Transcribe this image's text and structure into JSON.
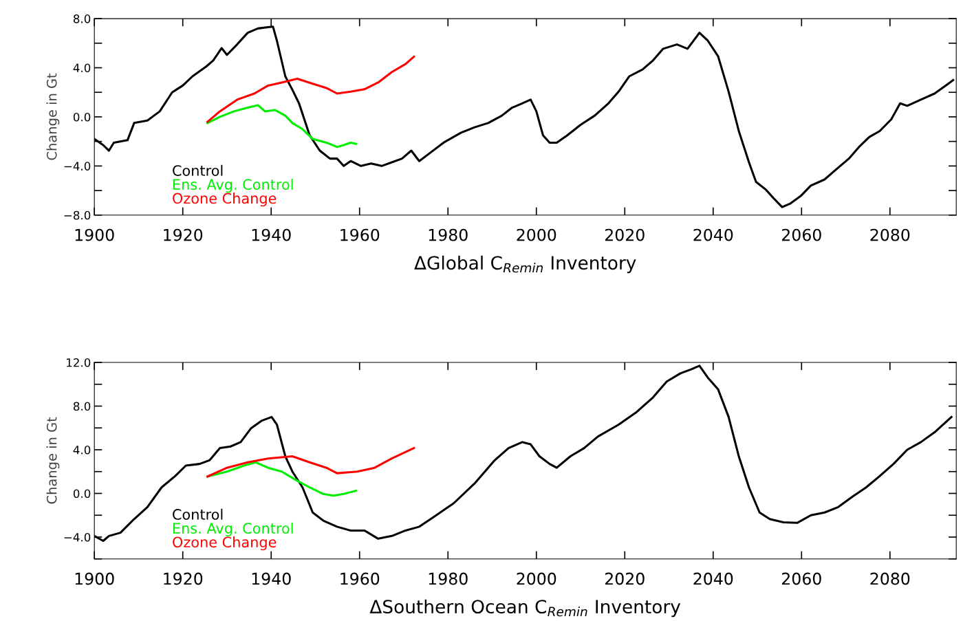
{
  "chart_data": [
    {
      "type": "line",
      "xlabel": "ΔGlobal C$_{Remin}$ Inventory",
      "ylabel": "Change in Gt",
      "xlim": [
        1900,
        2095
      ],
      "xticks": [
        1900,
        1920,
        1940,
        1960,
        1980,
        2000,
        2020,
        2040,
        2060,
        2080
      ],
      "ylim": [
        -8,
        8
      ],
      "yticks": [
        {
          "value": -8,
          "label": "−8.0"
        },
        {
          "value": -6,
          "label": null
        },
        {
          "value": -4,
          "label": "−4.0"
        },
        {
          "value": -2,
          "label": null
        },
        {
          "value": 0,
          "label": "0.0"
        },
        {
          "value": 2,
          "label": null
        },
        {
          "value": 4,
          "label": "4.0"
        },
        {
          "value": 6,
          "label": null
        },
        {
          "value": 8,
          "label": "8.0"
        }
      ],
      "legend": "bottom left",
      "grid": false,
      "series": [
        {
          "name": "Control",
          "color": "#000000",
          "x": [
            1900,
            1902,
            1903.3,
            1904.4,
            1907.5,
            1909,
            1912,
            1914.8,
            1917.6,
            1920,
            1922.2,
            1925.3,
            1926.9,
            1928.8,
            1930,
            1932.3,
            1934.7,
            1937,
            1939.3,
            1940.4,
            1941.3,
            1943.2,
            1944.8,
            1946.3,
            1948.7,
            1951,
            1953.3,
            1954.9,
            1956.4,
            1958,
            1960.3,
            1962.6,
            1965,
            1967.3,
            1969.6,
            1971.7,
            1973.5,
            1975.9,
            1979,
            1982.9,
            1986,
            1989.1,
            1992.2,
            1994.5,
            1996.8,
            1998.7,
            2000,
            2001.5,
            2003,
            2004.6,
            2007,
            2010,
            2013.2,
            2016.3,
            2018.6,
            2021,
            2024,
            2026.4,
            2028.7,
            2031.8,
            2034.2,
            2036.9,
            2038.8,
            2041.1,
            2043.5,
            2045.8,
            2048.1,
            2049.7,
            2052,
            2053.6,
            2055.6,
            2057.5,
            2059.8,
            2062.1,
            2065.2,
            2067.6,
            2070.7,
            2073,
            2075.3,
            2077.7,
            2080.3,
            2082.3,
            2083.9,
            2087,
            2090.1,
            2093.2,
            2094.3
          ],
          "values": [
            -1.8,
            -2.3,
            -2.75,
            -2.1,
            -1.9,
            -0.5,
            -0.3,
            0.45,
            2.0,
            2.55,
            3.3,
            4.1,
            4.6,
            5.6,
            5.05,
            5.9,
            6.85,
            7.2,
            7.3,
            7.35,
            6.2,
            3.3,
            2.2,
            1.1,
            -1.5,
            -2.75,
            -3.4,
            -3.4,
            -4.0,
            -3.6,
            -4.0,
            -3.8,
            -4.0,
            -3.7,
            -3.4,
            -2.75,
            -3.6,
            -2.95,
            -2.1,
            -1.3,
            -0.85,
            -0.5,
            0.1,
            0.75,
            1.1,
            1.4,
            0.45,
            -1.5,
            -2.1,
            -2.1,
            -1.5,
            -0.65,
            0.1,
            1.1,
            2.05,
            3.3,
            3.85,
            4.6,
            5.55,
            5.9,
            5.55,
            6.85,
            6.2,
            4.95,
            2.05,
            -1.15,
            -3.7,
            -5.3,
            -5.95,
            -6.6,
            -7.35,
            -7.05,
            -6.45,
            -5.6,
            -5.1,
            -4.35,
            -3.4,
            -2.45,
            -1.65,
            -1.15,
            -0.2,
            1.1,
            0.9,
            1.4,
            1.9,
            2.7,
            3.0
          ]
        },
        {
          "name": "Ens. Avg. Control",
          "color": "#00ee00",
          "x": [
            1925.6,
            1928.4,
            1931.6,
            1934.7,
            1937,
            1938.6,
            1940.9,
            1943.2,
            1944.8,
            1947.1,
            1949.4,
            1952.5,
            1954.9,
            1956.4,
            1958,
            1959.2
          ],
          "values": [
            -0.5,
            0.0,
            0.45,
            0.75,
            0.95,
            0.45,
            0.55,
            0.1,
            -0.5,
            -1.0,
            -1.8,
            -2.1,
            -2.45,
            -2.3,
            -2.1,
            -2.2
          ]
        },
        {
          "name": "Ozone Change",
          "color": "#ff0000",
          "x": [
            1925.6,
            1928.4,
            1932.3,
            1936.2,
            1939.3,
            1942.4,
            1945.9,
            1949.4,
            1952.5,
            1954.9,
            1958,
            1961.1,
            1964.2,
            1967.3,
            1970.4,
            1972.3
          ],
          "values": [
            -0.4,
            0.45,
            1.4,
            1.9,
            2.55,
            2.8,
            3.1,
            2.7,
            2.35,
            1.9,
            2.05,
            2.25,
            2.8,
            3.65,
            4.3,
            4.9
          ]
        }
      ]
    },
    {
      "type": "line",
      "xlabel": "ΔSouthern Ocean C$_{Remin}$ Inventory",
      "ylabel": "Change in Gt",
      "xlim": [
        1900,
        2095
      ],
      "xticks": [
        1900,
        1920,
        1940,
        1960,
        1980,
        2000,
        2020,
        2040,
        2060,
        2080
      ],
      "ylim": [
        -6,
        12
      ],
      "yticks": [
        {
          "value": -6,
          "label": null
        },
        {
          "value": -4,
          "label": "−4.0"
        },
        {
          "value": -2,
          "label": null
        },
        {
          "value": 0,
          "label": "0.0"
        },
        {
          "value": 2,
          "label": null
        },
        {
          "value": 4,
          "label": "4.0"
        },
        {
          "value": 6,
          "label": null
        },
        {
          "value": 8,
          "label": "8.0"
        },
        {
          "value": 10,
          "label": null
        },
        {
          "value": 12,
          "label": "12.0"
        }
      ],
      "legend": "bottom left",
      "grid": false,
      "series": [
        {
          "name": "Control",
          "color": "#000000",
          "x": [
            1900,
            1902,
            1903.3,
            1905.9,
            1909,
            1912,
            1915.2,
            1918.3,
            1920.7,
            1923.8,
            1926.1,
            1928.4,
            1930.8,
            1933.1,
            1935.4,
            1937.8,
            1940.1,
            1941.3,
            1943.2,
            1944.8,
            1947.1,
            1949.4,
            1951.8,
            1954.9,
            1958,
            1961.1,
            1964.2,
            1967.3,
            1970.4,
            1973.5,
            1976.6,
            1981.3,
            1986,
            1990.6,
            1993.7,
            1996.8,
            1998.7,
            2000.7,
            2003,
            2004.6,
            2007.7,
            2010.8,
            2013.9,
            2018.6,
            2022.5,
            2026.4,
            2029.5,
            2032.6,
            2034.9,
            2036.9,
            2038.8,
            2041.1,
            2043.5,
            2045.8,
            2048.1,
            2050.5,
            2052.8,
            2055.9,
            2059,
            2062.1,
            2065.2,
            2068.3,
            2071.5,
            2074.6,
            2077.7,
            2080.8,
            2083.9,
            2087,
            2090.1,
            2093.9
          ],
          "values": [
            -3.9,
            -4.35,
            -3.9,
            -3.6,
            -2.35,
            -1.25,
            0.55,
            1.6,
            2.55,
            2.7,
            3.05,
            4.15,
            4.3,
            4.7,
            5.95,
            6.65,
            7.0,
            6.3,
            3.4,
            2.0,
            0.55,
            -1.75,
            -2.5,
            -3.05,
            -3.4,
            -3.4,
            -4.15,
            -3.9,
            -3.4,
            -3.05,
            -2.2,
            -0.9,
            0.9,
            3.05,
            4.15,
            4.7,
            4.5,
            3.4,
            2.7,
            2.35,
            3.4,
            4.15,
            5.2,
            6.3,
            7.4,
            8.8,
            10.25,
            11.0,
            11.35,
            11.7,
            10.6,
            9.55,
            7.0,
            3.4,
            0.55,
            -1.75,
            -2.35,
            -2.65,
            -2.7,
            -2.0,
            -1.75,
            -1.25,
            -0.3,
            0.55,
            1.6,
            2.7,
            4.0,
            4.7,
            5.6,
            7.0
          ]
        },
        {
          "name": "Ens. Avg. Control",
          "color": "#00ee00",
          "x": [
            1925.6,
            1930,
            1933.9,
            1936.5,
            1939.3,
            1942.4,
            1945.5,
            1948.7,
            1951.8,
            1954.1,
            1956.4,
            1959.2
          ],
          "values": [
            1.55,
            2.0,
            2.55,
            2.85,
            2.35,
            2.0,
            1.25,
            0.55,
            -0.05,
            -0.2,
            -0.05,
            0.25
          ]
        },
        {
          "name": "Ozone Change",
          "color": "#ff0000",
          "x": [
            1925.6,
            1930,
            1934.7,
            1939.3,
            1944.8,
            1948.7,
            1952.5,
            1954.9,
            1959.5,
            1963.4,
            1967.3,
            1972.3
          ],
          "values": [
            1.55,
            2.35,
            2.85,
            3.2,
            3.4,
            2.85,
            2.35,
            1.85,
            2.0,
            2.35,
            3.2,
            4.15
          ]
        }
      ]
    }
  ]
}
